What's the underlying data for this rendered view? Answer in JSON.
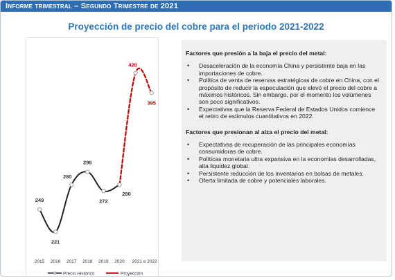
{
  "header": {
    "title": "Informe trimestral  –  Segundo Trimestre de 2021"
  },
  "colors": {
    "header_bg": "#2e6db4",
    "title": "#2e75b6",
    "historic": "#222222",
    "projection": "#c00000",
    "panel_bg": "#efefef"
  },
  "chart_data": {
    "type": "line",
    "title": "Proyección de precio del cobre para el periodo 2021-2022",
    "categories": [
      "2015",
      "2016",
      "2017",
      "2018",
      "2019",
      "2020",
      "2021 e",
      "2022 e"
    ],
    "category_label_last": "2021 e 2022 e",
    "series": [
      {
        "name": "Precio Histórico",
        "values": [
          249,
          221,
          280,
          296,
          272,
          280,
          null,
          null
        ],
        "color": "#222222"
      },
      {
        "name": "Proyección",
        "values": [
          null,
          null,
          null,
          null,
          null,
          280,
          420,
          395
        ],
        "color": "#c00000"
      }
    ],
    "data_labels": [
      "249",
      "221",
      "280",
      "296",
      "272",
      "280",
      "420",
      "395"
    ],
    "legend_position": "bottom",
    "ylim": [
      210,
      430
    ]
  },
  "sidebar_text": {
    "down_title": "Factores que presión a la baja el precio del metal:",
    "down_items": [
      "Desaceleración de la economía China y persistente baja en las importaciones de cobre.",
      "Política de venta de reservas estratégicas de cobre en China, con el propósito de reducir la especulación que elevó el precio del cobre a máximos históricos. Sin embargo, por el momento los volúmenes son poco significativos.",
      "Expectativas que la Reserva Federal de Estados Unidos comience el retiro de estímulos cuantitativos en 2022."
    ],
    "up_title": "Factores que presionan al alza el precio del metal:",
    "up_items": [
      "Expectativas de recuperación de las principales economías consumidoras de cobre.",
      "Políticas monetaria ultra expansiva en la economías desarrolladas, alta liquidez global.",
      "Persistente reducción de los inventarios en bolsas de metales.",
      "Oferta limitada de cobre y potenciales laborales."
    ]
  }
}
